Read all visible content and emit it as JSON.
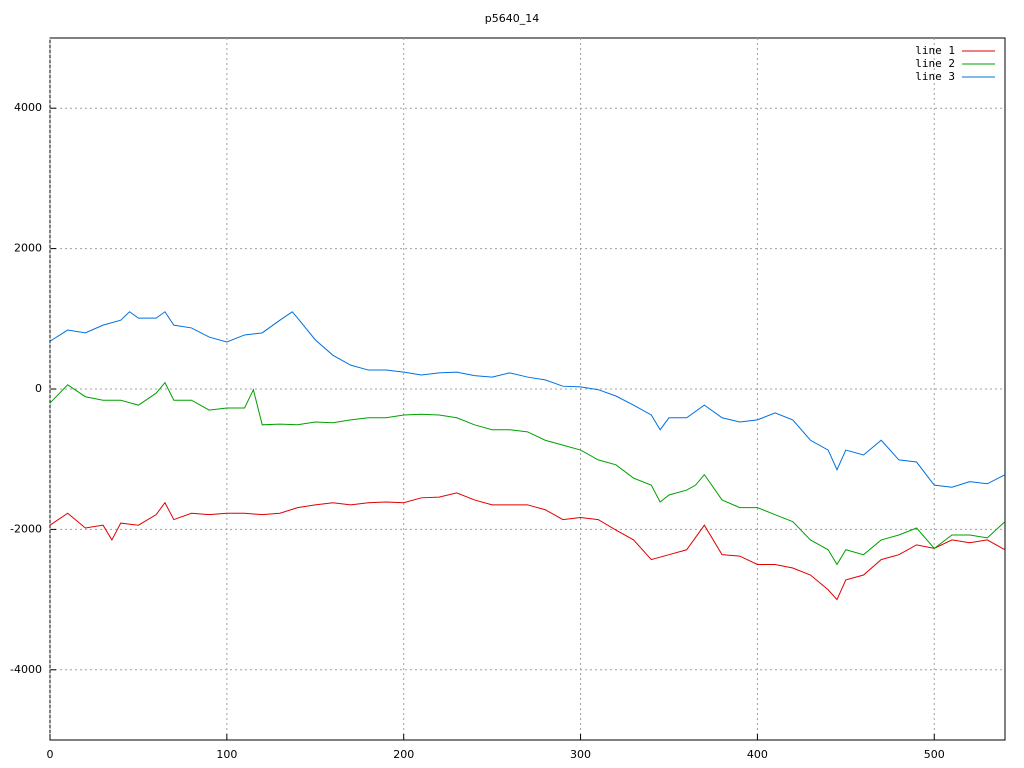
{
  "chart_data": {
    "type": "line",
    "title": "p5640_14",
    "xlim": [
      0,
      540
    ],
    "ylim": [
      -5000,
      5000
    ],
    "xticks": [
      0,
      100,
      200,
      300,
      400,
      500
    ],
    "yticks": [
      -4000,
      -2000,
      0,
      2000,
      4000
    ],
    "grid": true,
    "legend": "top-right",
    "series": [
      {
        "name": "line 1",
        "color": "#e00000",
        "x": [
          0,
          10,
          20,
          30,
          35,
          40,
          50,
          60,
          65,
          70,
          80,
          90,
          100,
          110,
          120,
          130,
          140,
          150,
          160,
          170,
          180,
          190,
          200,
          210,
          220,
          230,
          240,
          250,
          260,
          270,
          280,
          290,
          300,
          310,
          320,
          330,
          340,
          350,
          360,
          370,
          380,
          390,
          400,
          410,
          420,
          430,
          440,
          445,
          450,
          460,
          470,
          480,
          490,
          500,
          510,
          520,
          530,
          540
        ],
        "values": [
          -1940,
          -1770,
          -1980,
          -1940,
          -2150,
          -1910,
          -1940,
          -1790,
          -1620,
          -1860,
          -1770,
          -1790,
          -1770,
          -1770,
          -1790,
          -1770,
          -1690,
          -1650,
          -1620,
          -1650,
          -1620,
          -1610,
          -1620,
          -1550,
          -1540,
          -1480,
          -1580,
          -1650,
          -1650,
          -1650,
          -1720,
          -1860,
          -1830,
          -1860,
          -2010,
          -2150,
          -2430,
          -2360,
          -2290,
          -1940,
          -2360,
          -2380,
          -2500,
          -2500,
          -2550,
          -2650,
          -2860,
          -3000,
          -2720,
          -2650,
          -2430,
          -2360,
          -2220,
          -2270,
          -2150,
          -2190,
          -2150,
          -2290
        ]
      },
      {
        "name": "line 2",
        "color": "#00a000",
        "x": [
          0,
          10,
          20,
          30,
          40,
          50,
          60,
          65,
          70,
          80,
          90,
          100,
          110,
          115,
          120,
          130,
          140,
          150,
          160,
          170,
          180,
          190,
          200,
          210,
          220,
          230,
          240,
          250,
          260,
          270,
          280,
          290,
          300,
          310,
          320,
          330,
          340,
          345,
          350,
          360,
          365,
          370,
          380,
          390,
          400,
          410,
          420,
          430,
          440,
          445,
          450,
          460,
          470,
          480,
          490,
          500,
          510,
          520,
          530,
          540
        ],
        "values": [
          -200,
          60,
          -110,
          -160,
          -160,
          -230,
          -60,
          90,
          -160,
          -160,
          -300,
          -270,
          -270,
          -10,
          -510,
          -500,
          -510,
          -470,
          -480,
          -440,
          -410,
          -410,
          -370,
          -360,
          -370,
          -410,
          -510,
          -580,
          -580,
          -610,
          -730,
          -800,
          -870,
          -1010,
          -1080,
          -1270,
          -1370,
          -1610,
          -1510,
          -1440,
          -1370,
          -1220,
          -1580,
          -1690,
          -1690,
          -1790,
          -1890,
          -2150,
          -2290,
          -2500,
          -2290,
          -2360,
          -2150,
          -2080,
          -1980,
          -2270,
          -2080,
          -2080,
          -2120,
          -1890
        ]
      },
      {
        "name": "line 3",
        "color": "#0070e0",
        "x": [
          0,
          10,
          20,
          30,
          40,
          45,
          50,
          60,
          65,
          70,
          80,
          90,
          100,
          110,
          120,
          130,
          137,
          140,
          150,
          160,
          170,
          180,
          190,
          200,
          210,
          220,
          230,
          240,
          250,
          260,
          270,
          280,
          290,
          300,
          310,
          320,
          330,
          340,
          345,
          350,
          360,
          370,
          380,
          390,
          400,
          410,
          420,
          430,
          440,
          445,
          450,
          460,
          470,
          480,
          490,
          500,
          510,
          520,
          530,
          540
        ],
        "values": [
          680,
          840,
          800,
          910,
          980,
          1100,
          1010,
          1010,
          1100,
          910,
          870,
          740,
          670,
          770,
          800,
          980,
          1100,
          1010,
          700,
          480,
          340,
          270,
          270,
          240,
          200,
          230,
          240,
          190,
          170,
          230,
          170,
          130,
          40,
          30,
          -10,
          -100,
          -230,
          -370,
          -580,
          -410,
          -410,
          -230,
          -410,
          -470,
          -440,
          -340,
          -440,
          -730,
          -870,
          -1150,
          -870,
          -940,
          -730,
          -1010,
          -1040,
          -1370,
          -1400,
          -1320,
          -1350,
          -1220
        ]
      }
    ]
  }
}
